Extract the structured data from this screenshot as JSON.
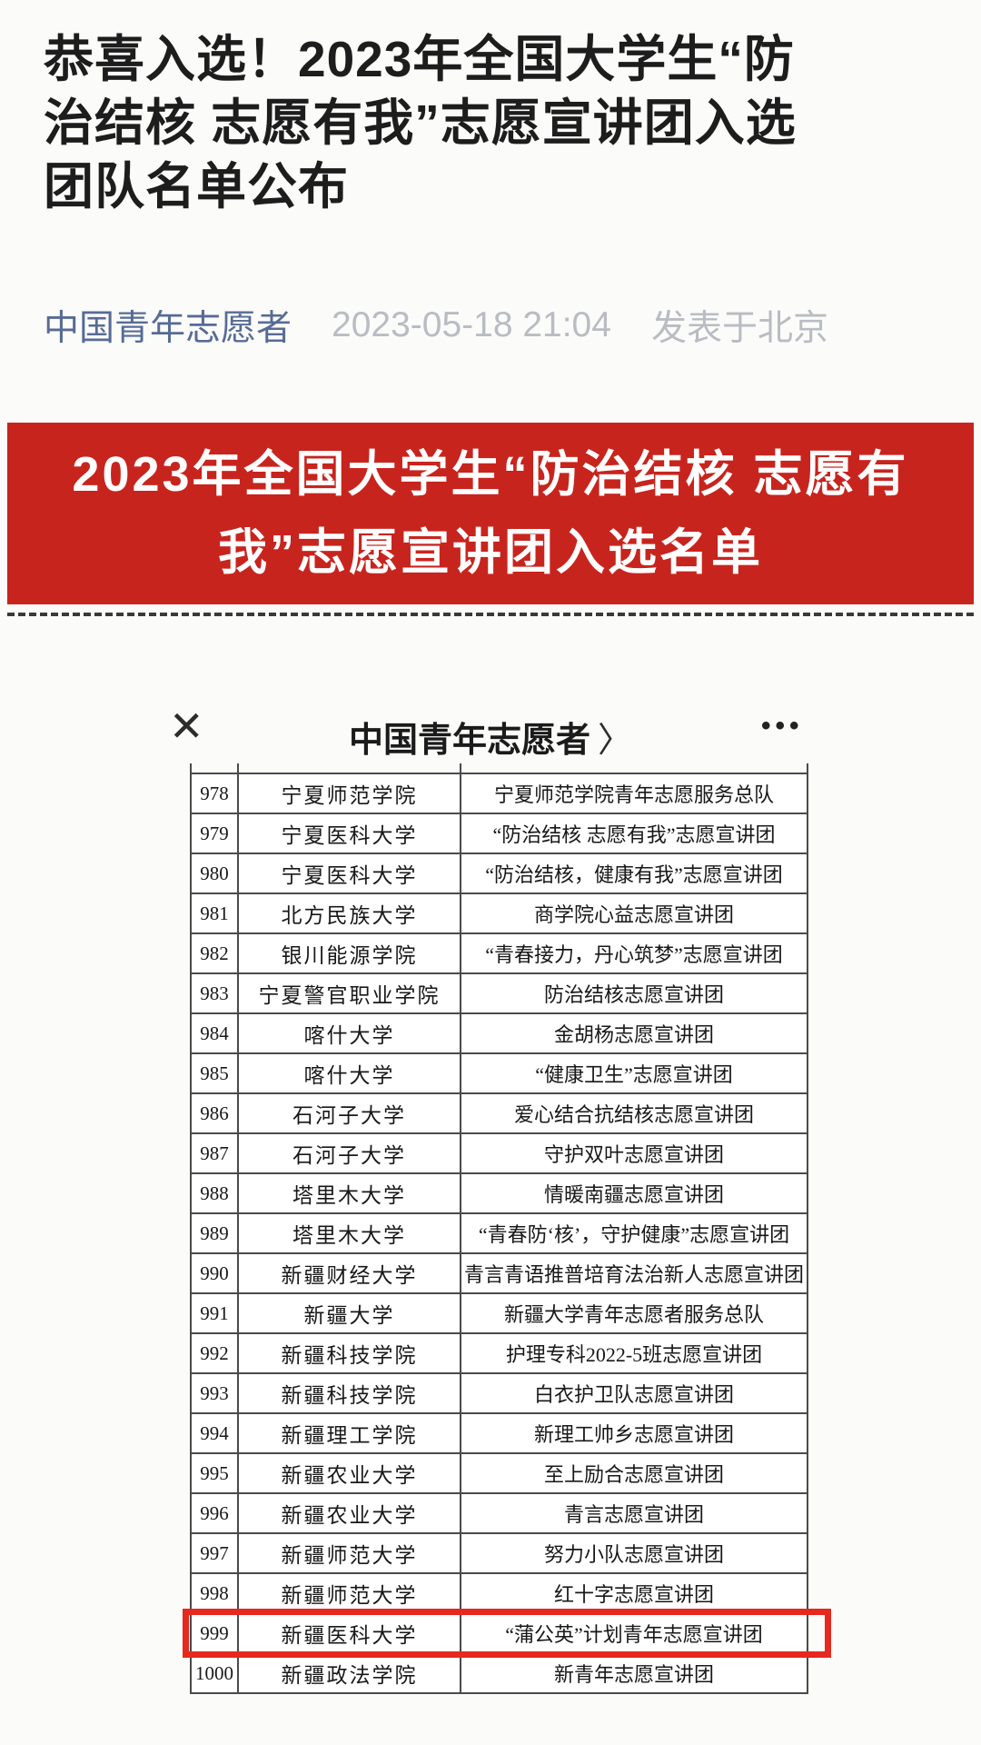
{
  "colors": {
    "banner_bg": "#c8241e",
    "banner_text": "#ffffff",
    "link": "#576b95",
    "highlight": "#e6281e",
    "table_border": "#4a4a4a"
  },
  "article": {
    "title_lines": [
      "恭喜入选！2023年全国大学生“防",
      "治结核 志愿有我”志愿宣讲团入选",
      "团队名单公布"
    ],
    "author": "中国青年志愿者",
    "date": "2023-05-18 21:04",
    "location": "发表于北京"
  },
  "banner": {
    "lines": [
      "2023年全国大学生“防治结核 志愿有",
      "我”志愿宣讲团入选名单"
    ]
  },
  "viewer": {
    "close_icon": "✕",
    "header_title": "中国青年志愿者",
    "chevron": "〉",
    "more_icon": "•••"
  },
  "table": {
    "highlighted_row": "999",
    "rows": [
      {
        "num": "978",
        "university": "宁夏师范学院",
        "team": "宁夏师范学院青年志愿服务总队"
      },
      {
        "num": "979",
        "university": "宁夏医科大学",
        "team": "“防治结核 志愿有我”志愿宣讲团"
      },
      {
        "num": "980",
        "university": "宁夏医科大学",
        "team": "“防治结核，健康有我”志愿宣讲团"
      },
      {
        "num": "981",
        "university": "北方民族大学",
        "team": "商学院心益志愿宣讲团"
      },
      {
        "num": "982",
        "university": "银川能源学院",
        "team": "“青春接力，丹心筑梦”志愿宣讲团"
      },
      {
        "num": "983",
        "university": "宁夏警官职业学院",
        "team": "防治结核志愿宣讲团"
      },
      {
        "num": "984",
        "university": "喀什大学",
        "team": "金胡杨志愿宣讲团"
      },
      {
        "num": "985",
        "university": "喀什大学",
        "team": "“健康卫生”志愿宣讲团"
      },
      {
        "num": "986",
        "university": "石河子大学",
        "team": "爱心结合抗结核志愿宣讲团"
      },
      {
        "num": "987",
        "university": "石河子大学",
        "team": "守护双叶志愿宣讲团"
      },
      {
        "num": "988",
        "university": "塔里木大学",
        "team": "情暖南疆志愿宣讲团"
      },
      {
        "num": "989",
        "university": "塔里木大学",
        "team": "“青春防‘核’，守护健康”志愿宣讲团"
      },
      {
        "num": "990",
        "university": "新疆财经大学",
        "team": "青言青语推普培育法治新人志愿宣讲团"
      },
      {
        "num": "991",
        "university": "新疆大学",
        "team": "新疆大学青年志愿者服务总队"
      },
      {
        "num": "992",
        "university": "新疆科技学院",
        "team": "护理专科2022-5班志愿宣讲团"
      },
      {
        "num": "993",
        "university": "新疆科技学院",
        "team": "白衣护卫队志愿宣讲团"
      },
      {
        "num": "994",
        "university": "新疆理工学院",
        "team": "新理工帅乡志愿宣讲团"
      },
      {
        "num": "995",
        "university": "新疆农业大学",
        "team": "至上励合志愿宣讲团"
      },
      {
        "num": "996",
        "university": "新疆农业大学",
        "team": "青言志愿宣讲团"
      },
      {
        "num": "997",
        "university": "新疆师范大学",
        "team": "努力小队志愿宣讲团"
      },
      {
        "num": "998",
        "university": "新疆师范大学",
        "team": "红十字志愿宣讲团"
      },
      {
        "num": "999",
        "university": "新疆医科大学",
        "team": "“蒲公英”计划青年志愿宣讲团"
      },
      {
        "num": "1000",
        "university": "新疆政法学院",
        "team": "新青年志愿宣讲团"
      }
    ]
  }
}
